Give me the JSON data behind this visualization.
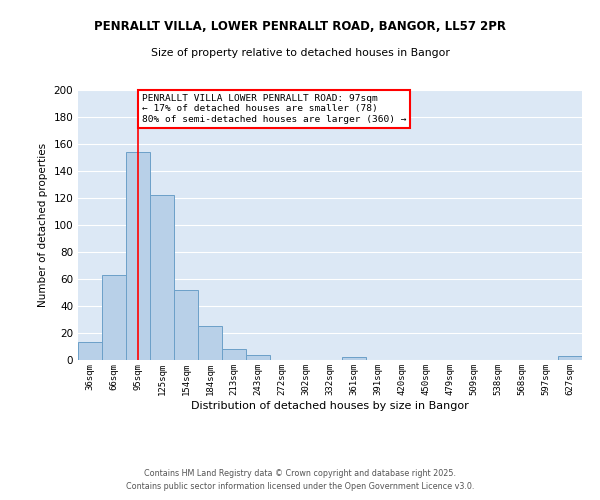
{
  "title": "PENRALLT VILLA, LOWER PENRALLT ROAD, BANGOR, LL57 2PR",
  "subtitle": "Size of property relative to detached houses in Bangor",
  "xlabel": "Distribution of detached houses by size in Bangor",
  "ylabel": "Number of detached properties",
  "bar_color": "#b8d0e8",
  "bar_edge_color": "#6ca0c8",
  "background_color": "#dce8f5",
  "categories": [
    "36sqm",
    "66sqm",
    "95sqm",
    "125sqm",
    "154sqm",
    "184sqm",
    "213sqm",
    "243sqm",
    "272sqm",
    "302sqm",
    "332sqm",
    "361sqm",
    "391sqm",
    "420sqm",
    "450sqm",
    "479sqm",
    "509sqm",
    "538sqm",
    "568sqm",
    "597sqm",
    "627sqm"
  ],
  "values": [
    13,
    63,
    154,
    122,
    52,
    25,
    8,
    4,
    0,
    0,
    0,
    2,
    0,
    0,
    0,
    0,
    0,
    0,
    0,
    0,
    3
  ],
  "ylim": [
    0,
    200
  ],
  "yticks": [
    0,
    20,
    40,
    60,
    80,
    100,
    120,
    140,
    160,
    180,
    200
  ],
  "property_line_x": 2,
  "annotation_text": "PENRALLT VILLA LOWER PENRALLT ROAD: 97sqm\n← 17% of detached houses are smaller (78)\n80% of semi-detached houses are larger (360) →",
  "footer1": "Contains HM Land Registry data © Crown copyright and database right 2025.",
  "footer2": "Contains public sector information licensed under the Open Government Licence v3.0."
}
